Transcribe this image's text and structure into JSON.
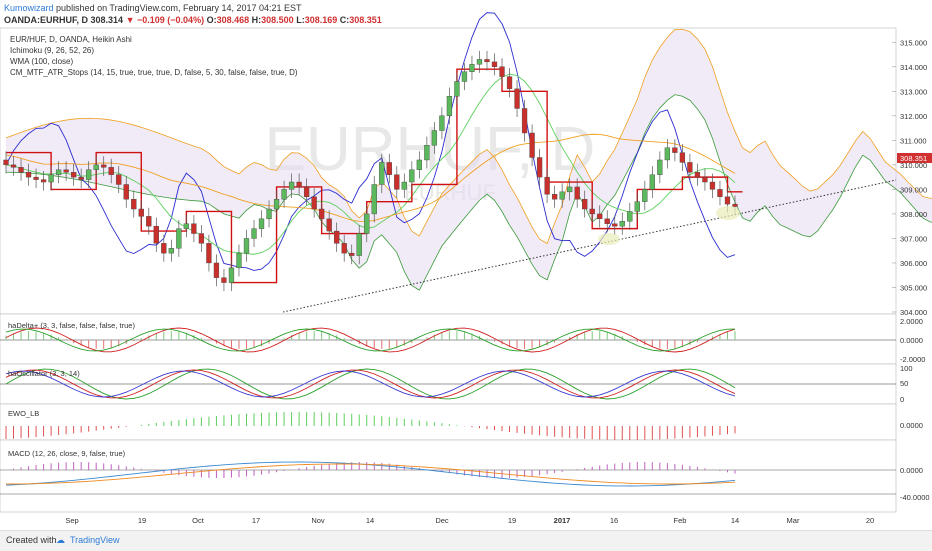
{
  "header": {
    "author": "Kumowizard",
    "published": "published on TradingView.com, February 14, 2017 04:21 EST",
    "symbol": "OANDA:EURHUF, D",
    "last": "308.314",
    "change": "−0.109 (−0.04%)",
    "o_label": "O:",
    "o": "308.468",
    "h_label": "H:",
    "h": "308.500",
    "l_label": "L:",
    "l": "308.169",
    "c_label": "C:",
    "c": "308.351"
  },
  "watermark": {
    "main": "EURHUF, D",
    "sub": "EURHUF"
  },
  "price_pane": {
    "legend": [
      "EUR/HUF, D, OANDA, Heikin Ashi",
      "Ichimoku (9, 26, 52, 26)",
      "WMA (100, close)",
      "CM_MTF_ATR_Stops (14, 15, true, true, true, D, false, 5, 30, false, false, true, D)"
    ],
    "y_ticks": [
      "315.000",
      "314.000",
      "313.000",
      "312.000",
      "311.000",
      "310.000",
      "309.000",
      "308.000",
      "307.000",
      "306.000",
      "305.000",
      "304.000"
    ]
  },
  "panes": {
    "hadelta": {
      "label": "haDelta+ (3, 3, false, false, false, true)",
      "ticks": [
        "2.0000",
        "0.0000",
        "-2.0000"
      ]
    },
    "haosc": {
      "label": "haOscillator (3, 3, 14)",
      "ticks": [
        "100",
        "50",
        "0"
      ]
    },
    "ewo": {
      "label": "EWO_LB",
      "ticks": [
        "0.0000"
      ]
    },
    "macd": {
      "label": "MACD (12, 26, close, 9, false, true)",
      "ticks": [
        "0.0000",
        "-40.0000"
      ]
    }
  },
  "x_ticks": [
    "Sep",
    "19",
    "Oct",
    "17",
    "Nov",
    "14",
    "Dec",
    "19",
    "2017",
    "16",
    "Feb",
    "14",
    "Mar",
    "20"
  ],
  "colors": {
    "bull": "#5cb85c",
    "bear": "#c9302c",
    "tenkan": "#2c2cd0",
    "stops": "#d01010",
    "wma": "#f0a020",
    "cloud": "#e6d9f0"
  },
  "chart_data": {
    "type": "candlestick",
    "title": "EUR/HUF, D, OANDA, Heikin Ashi",
    "ylim": [
      304,
      315.5
    ],
    "x_range": [
      "Aug 2016",
      "Mar 2017"
    ],
    "candles_close_approx": [
      310.0,
      309.9,
      309.7,
      309.5,
      309.4,
      309.3,
      309.6,
      309.8,
      309.7,
      309.5,
      309.4,
      309.8,
      310.0,
      309.9,
      309.6,
      309.2,
      308.6,
      308.2,
      307.9,
      307.5,
      306.8,
      306.4,
      306.6,
      307.4,
      307.6,
      307.2,
      306.8,
      306.0,
      305.4,
      305.2,
      305.8,
      306.4,
      307.0,
      307.4,
      307.8,
      308.2,
      308.6,
      309.0,
      309.3,
      309.1,
      308.7,
      308.2,
      307.8,
      307.3,
      306.8,
      306.4,
      306.3,
      307.2,
      308.0,
      309.2,
      310.1,
      309.6,
      309.0,
      309.3,
      309.8,
      310.2,
      310.8,
      311.4,
      312.0,
      312.8,
      313.4,
      313.8,
      314.1,
      314.3,
      314.2,
      314.0,
      313.6,
      313.1,
      312.3,
      311.3,
      310.3,
      309.5,
      308.8,
      308.6,
      308.9,
      309.1,
      308.6,
      308.2,
      308.0,
      307.8,
      307.6,
      307.5,
      307.7,
      308.1,
      308.5,
      309.0,
      309.6,
      310.2,
      310.7,
      310.5,
      310.1,
      309.7,
      309.5,
      309.3,
      309.0,
      308.7,
      308.4,
      308.3
    ],
    "trendline": {
      "from": [
        "Oct 2016",
        303.8
      ],
      "to": [
        "Feb 2017",
        308.1
      ],
      "style": "dotted"
    },
    "series": [
      {
        "name": "Ichimoku (9, 26, 52, 26)"
      },
      {
        "name": "WMA (100, close)"
      },
      {
        "name": "CM_MTF_ATR_Stops"
      }
    ],
    "last_price": 308.351
  }
}
